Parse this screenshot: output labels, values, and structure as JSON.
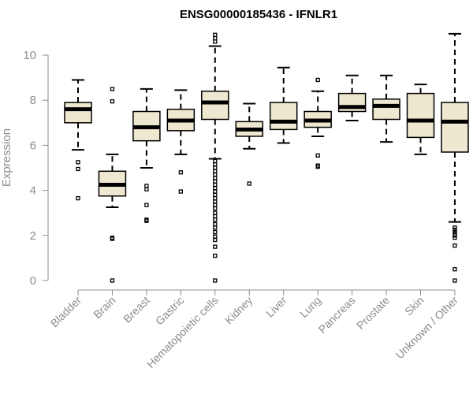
{
  "chart_data": {
    "type": "boxplot",
    "title": "ENSG00000185436 - IFNLR1",
    "ylabel": "Expression",
    "xlabel": "",
    "ylim": [
      0,
      11
    ],
    "yticks": [
      0,
      2,
      4,
      6,
      8,
      10
    ],
    "box_fill": "#efe8d0",
    "categories": [
      "Bladder",
      "Brain",
      "Breast",
      "Gastric",
      "Hematopoietic cells",
      "Kidney",
      "Liver",
      "Lung",
      "Pancreas",
      "Prostate",
      "Skin",
      "Unknown / Other"
    ],
    "boxes": [
      {
        "whisker_low": 5.8,
        "q1": 7.0,
        "median": 7.6,
        "q3": 7.9,
        "whisker_high": 8.9,
        "outliers": [
          5.25,
          4.95,
          3.65
        ]
      },
      {
        "whisker_low": 3.25,
        "q1": 3.75,
        "median": 4.25,
        "q3": 4.85,
        "whisker_high": 5.6,
        "outliers": [
          8.5,
          7.95,
          1.9,
          1.85,
          0.0
        ]
      },
      {
        "whisker_low": 5.0,
        "q1": 6.2,
        "median": 6.8,
        "q3": 7.5,
        "whisker_high": 8.5,
        "outliers": [
          4.2,
          4.05,
          3.35,
          2.7,
          2.65
        ]
      },
      {
        "whisker_low": 5.6,
        "q1": 6.65,
        "median": 7.1,
        "q3": 7.6,
        "whisker_high": 8.45,
        "outliers": [
          4.8,
          3.95
        ]
      },
      {
        "whisker_low": 5.4,
        "q1": 7.15,
        "median": 7.9,
        "q3": 8.4,
        "whisker_high": 10.4,
        "outliers": [
          10.9,
          10.75,
          10.6,
          5.3,
          5.15,
          5.0,
          4.85,
          4.7,
          4.55,
          4.4,
          4.25,
          4.1,
          3.95,
          3.8,
          3.65,
          3.5,
          3.35,
          3.2,
          3.0,
          2.85,
          2.7,
          2.5,
          2.35,
          2.15,
          1.95,
          1.8,
          1.5,
          1.1,
          0.0
        ]
      },
      {
        "whisker_low": 5.85,
        "q1": 6.4,
        "median": 6.7,
        "q3": 7.05,
        "whisker_high": 7.85,
        "outliers": [
          4.3
        ]
      },
      {
        "whisker_low": 6.1,
        "q1": 6.7,
        "median": 7.05,
        "q3": 7.9,
        "whisker_high": 9.45,
        "outliers": []
      },
      {
        "whisker_low": 6.4,
        "q1": 6.8,
        "median": 7.1,
        "q3": 7.5,
        "whisker_high": 8.4,
        "outliers": [
          8.9,
          5.55,
          5.1,
          5.05
        ]
      },
      {
        "whisker_low": 7.1,
        "q1": 7.5,
        "median": 7.7,
        "q3": 8.3,
        "whisker_high": 9.1,
        "outliers": []
      },
      {
        "whisker_low": 6.15,
        "q1": 7.15,
        "median": 7.75,
        "q3": 8.05,
        "whisker_high": 9.1,
        "outliers": []
      },
      {
        "whisker_low": 5.6,
        "q1": 6.35,
        "median": 7.1,
        "q3": 8.3,
        "whisker_high": 8.7,
        "outliers": []
      },
      {
        "whisker_low": 2.6,
        "q1": 5.7,
        "median": 7.05,
        "q3": 7.9,
        "whisker_high": 10.95,
        "outliers": [
          2.35,
          2.25,
          2.15,
          2.05,
          2.0,
          1.9,
          1.55,
          0.5,
          0.0
        ]
      }
    ]
  }
}
